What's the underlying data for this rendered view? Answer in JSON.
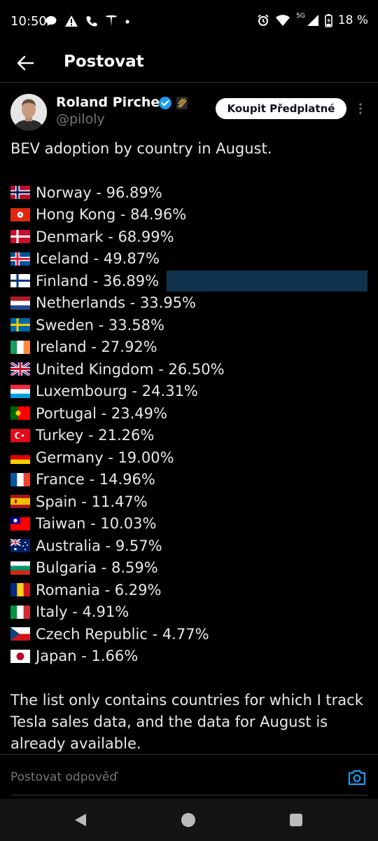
{
  "status_bar": {
    "time": "10:50",
    "network": "5G",
    "battery": "18 %",
    "icons": [
      "chat-icon",
      "warning-icon",
      "phone-icon",
      "tesla-icon",
      "dot-icon",
      "alarm-icon",
      "wifi-icon",
      "signal-icon",
      "battery-icon"
    ]
  },
  "header": {
    "title": "Postovat"
  },
  "post": {
    "author": "Roland Pircher",
    "handle": "@piloly",
    "subscribe_label": "Koupit Předplatné",
    "intro": "BEV adoption by country in August.",
    "countries": [
      {
        "flag": "norway",
        "text": "Norway - 96.89%"
      },
      {
        "flag": "hong-kong",
        "text": "Hong Kong - 84.96%"
      },
      {
        "flag": "denmark",
        "text": "Denmark - 68.99%"
      },
      {
        "flag": "iceland",
        "text": "Iceland - 49.87%"
      },
      {
        "flag": "finland",
        "text": "Finland - 36.89%"
      },
      {
        "flag": "netherlands",
        "text": "Netherlands - 33.95%"
      },
      {
        "flag": "sweden",
        "text": "Sweden - 33.58%"
      },
      {
        "flag": "ireland",
        "text": "Ireland - 27.92%"
      },
      {
        "flag": "united-kingdom",
        "text": "United Kingdom - 26.50%"
      },
      {
        "flag": "luxembourg",
        "text": "Luxembourg - 24.31%"
      },
      {
        "flag": "portugal",
        "text": "Portugal - 23.49%"
      },
      {
        "flag": "turkey",
        "text": "Turkey - 21.26%"
      },
      {
        "flag": "germany",
        "text": "Germany - 19.00%"
      },
      {
        "flag": "france",
        "text": "France - 14.96%"
      },
      {
        "flag": "spain",
        "text": "Spain - 11.47%"
      },
      {
        "flag": "taiwan",
        "text": "Taiwan - 10.03%"
      },
      {
        "flag": "australia",
        "text": "Australia - 9.57%"
      },
      {
        "flag": "bulgaria",
        "text": "Bulgaria - 8.59%"
      },
      {
        "flag": "romania",
        "text": "Romania - 6.29%"
      },
      {
        "flag": "italy",
        "text": "Italy - 4.91%"
      },
      {
        "flag": "czech-republic",
        "text": "Czech Republic - 4.77%"
      },
      {
        "flag": "japan",
        "text": "Japan - 1.66%"
      }
    ],
    "outro": "The list only contains countries for which I track Tesla sales data, and the data for August is already available."
  },
  "reply": {
    "placeholder": "Postovat odpověď"
  },
  "colors": {
    "accent": "#1d9bf0",
    "highlight": "#11324c",
    "muted": "#71767b",
    "background": "#000000"
  }
}
